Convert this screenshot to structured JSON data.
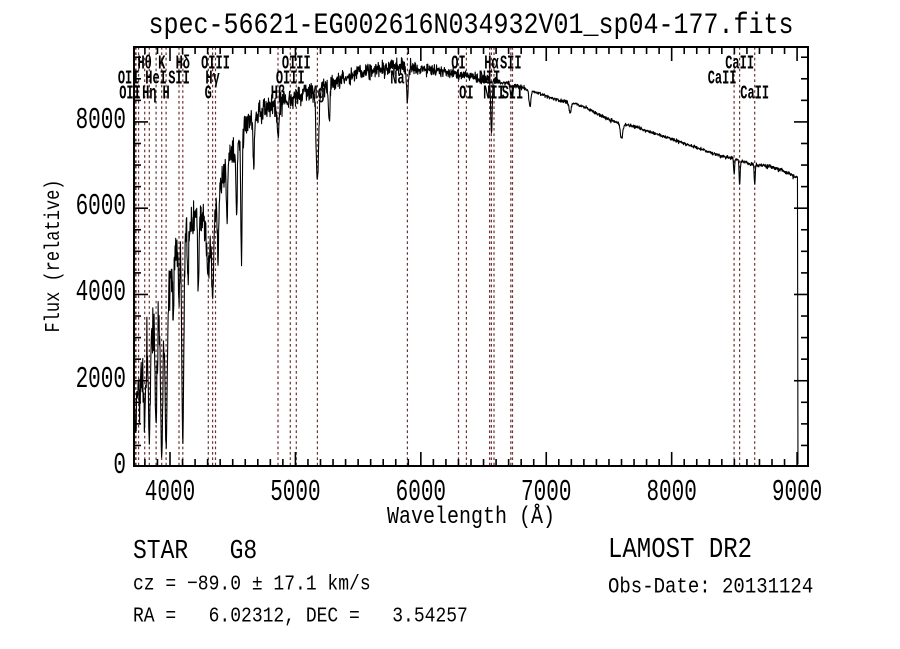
{
  "window": {
    "background": "#ffffff"
  },
  "chart_data": {
    "type": "line",
    "title": "spec-56621-EG002616N034932V01_sp04-177.fits",
    "xlabel": "Wavelength (Å)",
    "ylabel": "Flux (relative)",
    "xlim": [
      3705,
      9095
    ],
    "ylim": [
      0,
      9760
    ],
    "x_major_ticks": [
      4000,
      5000,
      6000,
      7000,
      8000,
      9000
    ],
    "x_minor_step": 100,
    "y_major_ticks": [
      0,
      2000,
      4000,
      6000,
      8000
    ],
    "y_minor_step": 500,
    "grid": false,
    "legend": null,
    "series_color": "#000000",
    "line_marker_color": "#6e3030",
    "frame_color": "#000000",
    "spectral_lines": [
      {
        "wavelength": 3726,
        "label": "OII",
        "row": 2,
        "dx": -7
      },
      {
        "wavelength": 3729,
        "label": "OII",
        "row": 3,
        "dx": -6
      },
      {
        "wavelength": 3798,
        "label": "Hθ",
        "row": 1,
        "dx": 0
      },
      {
        "wavelength": 3835,
        "label": "Hη",
        "row": 3,
        "dx": 0
      },
      {
        "wavelength": 3889,
        "label": "HeI",
        "row": 2,
        "dx": 0
      },
      {
        "wavelength": 3934,
        "label": "K",
        "row": 1,
        "dx": 0
      },
      {
        "wavelength": 3969,
        "label": "H",
        "row": 3,
        "dx": 0
      },
      {
        "wavelength": 4072,
        "label": "SII",
        "row": 2,
        "dx": 0
      },
      {
        "wavelength": 4102,
        "label": "Hδ",
        "row": 1,
        "dx": 0
      },
      {
        "wavelength": 4305,
        "label": "G",
        "row": 3,
        "dx": 0
      },
      {
        "wavelength": 4340,
        "label": "Hγ",
        "row": 2,
        "dx": 0
      },
      {
        "wavelength": 4363,
        "label": "OIII",
        "row": 1,
        "dx": 0
      },
      {
        "wavelength": 4861,
        "label": "Hβ",
        "row": 3,
        "dx": 0
      },
      {
        "wavelength": 4959,
        "label": "OIII",
        "row": 2,
        "dx": 0
      },
      {
        "wavelength": 5007,
        "label": "OIII",
        "row": 1,
        "dx": 0
      },
      {
        "wavelength": 5175,
        "label": "Mg",
        "row": 3,
        "dx": 0
      },
      {
        "wavelength": 5893,
        "label": "Na",
        "row": 2,
        "dx": -10
      },
      {
        "wavelength": 6300,
        "label": "OI",
        "row": 1,
        "dx": 0
      },
      {
        "wavelength": 6363,
        "label": "OI",
        "row": 3,
        "dx": 0
      },
      {
        "wavelength": 6548,
        "label": "NII",
        "row": 2,
        "dx": 0
      },
      {
        "wavelength": 6563,
        "label": "Hα",
        "row": 1,
        "dx": 0
      },
      {
        "wavelength": 6583,
        "label": "NII",
        "row": 3,
        "dx": 0
      },
      {
        "wavelength": 6717,
        "label": "SII",
        "row": 1,
        "dx": 0
      },
      {
        "wavelength": 6731,
        "label": "SII",
        "row": 3,
        "dx": 0
      },
      {
        "wavelength": 8498,
        "label": "CaII",
        "row": 2,
        "dx": -12
      },
      {
        "wavelength": 8542,
        "label": "CaII",
        "row": 1,
        "dx": 0
      },
      {
        "wavelength": 8662,
        "label": "CaII",
        "row": 3,
        "dx": 0
      }
    ],
    "extra_line_markers": [
      3750
    ],
    "continuum_points": [
      [
        3705,
        1500
      ],
      [
        3740,
        2100
      ],
      [
        3780,
        2100
      ],
      [
        3820,
        2700
      ],
      [
        3860,
        3100
      ],
      [
        3900,
        3200
      ],
      [
        3940,
        3400
      ],
      [
        3980,
        4000
      ],
      [
        4020,
        4700
      ],
      [
        4060,
        5200
      ],
      [
        4100,
        5450
      ],
      [
        4150,
        5600
      ],
      [
        4200,
        5800
      ],
      [
        4250,
        5750
      ],
      [
        4300,
        5400
      ],
      [
        4330,
        5300
      ],
      [
        4360,
        5900
      ],
      [
        4400,
        6500
      ],
      [
        4450,
        7000
      ],
      [
        4500,
        7300
      ],
      [
        4550,
        7500
      ],
      [
        4600,
        7900
      ],
      [
        4650,
        8100
      ],
      [
        4700,
        8200
      ],
      [
        4750,
        8300
      ],
      [
        4800,
        8350
      ],
      [
        4860,
        8350
      ],
      [
        4920,
        8500
      ],
      [
        5000,
        8600
      ],
      [
        5080,
        8700
      ],
      [
        5160,
        8700
      ],
      [
        5240,
        8800
      ],
      [
        5320,
        8900
      ],
      [
        5400,
        9000
      ],
      [
        5500,
        9150
      ],
      [
        5600,
        9200
      ],
      [
        5700,
        9250
      ],
      [
        5800,
        9300
      ],
      [
        5900,
        9250
      ],
      [
        6000,
        9250
      ],
      [
        6100,
        9200
      ],
      [
        6200,
        9150
      ],
      [
        6300,
        9100
      ],
      [
        6400,
        9050
      ],
      [
        6500,
        9000
      ],
      [
        6600,
        8950
      ],
      [
        6700,
        8900
      ],
      [
        6800,
        8800
      ],
      [
        6900,
        8700
      ],
      [
        7000,
        8600
      ],
      [
        7100,
        8500
      ],
      [
        7200,
        8450
      ],
      [
        7300,
        8350
      ],
      [
        7400,
        8200
      ],
      [
        7500,
        8050
      ],
      [
        7600,
        7950
      ],
      [
        7700,
        7900
      ],
      [
        7800,
        7800
      ],
      [
        7900,
        7700
      ],
      [
        8000,
        7600
      ],
      [
        8100,
        7500
      ],
      [
        8200,
        7400
      ],
      [
        8300,
        7300
      ],
      [
        8400,
        7200
      ],
      [
        8500,
        7150
      ],
      [
        8600,
        7050
      ],
      [
        8700,
        7000
      ],
      [
        8800,
        6950
      ],
      [
        8900,
        6850
      ],
      [
        9005,
        6700
      ]
    ],
    "noise_level_points": [
      [
        3705,
        900
      ],
      [
        3800,
        1000
      ],
      [
        3900,
        1000
      ],
      [
        4000,
        800
      ],
      [
        4100,
        700
      ],
      [
        4200,
        620
      ],
      [
        4300,
        600
      ],
      [
        4400,
        500
      ],
      [
        4600,
        420
      ],
      [
        4800,
        380
      ],
      [
        5000,
        350
      ],
      [
        5200,
        320
      ],
      [
        5400,
        300
      ],
      [
        5600,
        280
      ],
      [
        5900,
        260
      ],
      [
        6200,
        200
      ],
      [
        6500,
        160
      ],
      [
        6700,
        90
      ],
      [
        7000,
        70
      ],
      [
        7500,
        60
      ],
      [
        8000,
        55
      ],
      [
        8500,
        60
      ],
      [
        8800,
        70
      ],
      [
        9005,
        80
      ]
    ],
    "absorption_features": [
      [
        3726,
        0.5,
        5
      ],
      [
        3760,
        0.35,
        5
      ],
      [
        3798,
        0.6,
        6
      ],
      [
        3835,
        0.8,
        7
      ],
      [
        3889,
        0.65,
        7
      ],
      [
        3934,
        0.93,
        8
      ],
      [
        3969,
        0.9,
        8
      ],
      [
        4026,
        0.3,
        5
      ],
      [
        4072,
        0.3,
        5
      ],
      [
        4102,
        0.88,
        8
      ],
      [
        4144,
        0.25,
        5
      ],
      [
        4226,
        0.3,
        5
      ],
      [
        4305,
        0.15,
        10
      ],
      [
        4340,
        0.3,
        7
      ],
      [
        4383,
        0.25,
        5
      ],
      [
        4455,
        0.18,
        5
      ],
      [
        4531,
        0.22,
        5
      ],
      [
        4570,
        0.38,
        5
      ],
      [
        4668,
        0.15,
        5
      ],
      [
        4861,
        0.08,
        7
      ],
      [
        5175,
        0.24,
        10
      ],
      [
        5270,
        0.08,
        6
      ],
      [
        5893,
        0.08,
        7
      ],
      [
        6563,
        0.14,
        6
      ],
      [
        6717,
        0.03,
        5
      ],
      [
        6731,
        0.03,
        5
      ],
      [
        6870,
        0.04,
        8
      ],
      [
        7190,
        0.03,
        8
      ],
      [
        7600,
        0.04,
        10
      ],
      [
        8498,
        0.05,
        4
      ],
      [
        8542,
        0.08,
        4
      ],
      [
        8662,
        0.07,
        4
      ]
    ],
    "spectrum_start": 3708,
    "spectrum_end": 9005,
    "end_drop_flux": 60,
    "sample_step": 2.5,
    "noise_seed": 13
  },
  "annotations": {
    "class_line": "STAR   G8",
    "cz_line": "cz = −89.0 ± 17.1 km/s",
    "radec_line": "RA =   6.02312, DEC =   3.54257",
    "survey": "LAMOST DR2",
    "obs_date": "Obs-Date: 20131124"
  }
}
